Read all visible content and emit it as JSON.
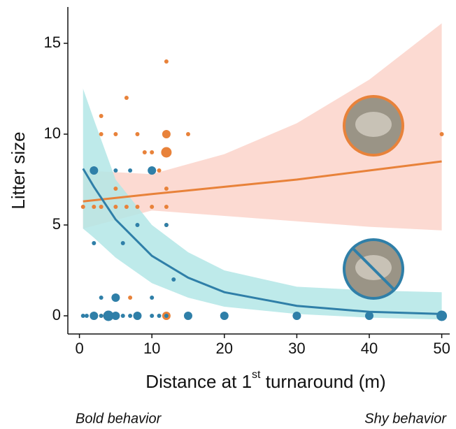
{
  "chart_data": {
    "type": "scatter",
    "ylabel": "Litter size",
    "xlabel": {
      "main": "Distance at 1",
      "sup": "st",
      "rest": " turnaround (m)"
    },
    "annotations": [
      "Bold behavior",
      "Shy behavior"
    ],
    "xlim": [
      -1.6,
      51.1
    ],
    "ylim": [
      -1,
      17
    ],
    "xticks": [
      0,
      10,
      20,
      30,
      40,
      50
    ],
    "yticks": [
      0,
      5,
      10,
      15
    ],
    "series": [
      {
        "color": "#e8823a",
        "band_color": "#fbd3ca",
        "x": [
          0.5,
          2,
          3,
          3,
          3,
          3,
          5,
          5,
          5,
          6.5,
          6.5,
          7,
          8,
          8,
          9,
          10,
          10,
          11,
          12,
          12,
          12,
          12,
          12,
          12,
          12,
          15,
          50
        ],
        "values": [
          6,
          6,
          11,
          10,
          6,
          0,
          10,
          7,
          6,
          12,
          6,
          1,
          10,
          6,
          9,
          9,
          6,
          8,
          14,
          10,
          9,
          7,
          5,
          0,
          6,
          10,
          10
        ],
        "sizes": [
          1,
          1,
          1,
          1,
          1,
          1,
          1,
          1,
          1,
          1,
          1,
          1,
          1,
          1,
          1,
          1,
          1,
          1,
          1,
          3,
          4,
          1,
          1,
          3,
          1,
          1,
          1
        ],
        "fit": {
          "x": [
            0.5,
            10,
            20,
            30,
            40,
            50
          ],
          "values": [
            6.3,
            6.7,
            7.1,
            7.5,
            8.0,
            8.5
          ],
          "lower": [
            4.8,
            5.8,
            5.5,
            5.2,
            4.9,
            4.7
          ],
          "upper": [
            8.0,
            7.8,
            8.9,
            10.6,
            13.0,
            16.1
          ]
        }
      },
      {
        "color": "#2f7fa8",
        "band_color": "#b3e6e6",
        "x": [
          2,
          2,
          3,
          5,
          5,
          6,
          7,
          8,
          10,
          10,
          12,
          13,
          0.5,
          1,
          2,
          3,
          4,
          5,
          6,
          7,
          8,
          10,
          11,
          12,
          15,
          20,
          30,
          40,
          50
        ],
        "values": [
          8,
          4,
          1,
          1,
          8,
          4,
          8,
          5,
          1,
          8,
          5,
          2,
          0,
          0,
          0,
          0,
          0,
          0,
          0,
          0,
          0,
          0,
          0,
          0,
          0,
          0,
          0,
          0,
          0
        ],
        "sizes": [
          3,
          1,
          1,
          3,
          1,
          1,
          1,
          1,
          1,
          3,
          1,
          1,
          1,
          1,
          3,
          1,
          4,
          3,
          1,
          1,
          3,
          1,
          1,
          1,
          3,
          3,
          3,
          3,
          4
        ],
        "fit": {
          "x": [
            0.5,
            2,
            5,
            10,
            15,
            20,
            30,
            40,
            50
          ],
          "values": [
            8.1,
            7.1,
            5.3,
            3.3,
            2.1,
            1.3,
            0.55,
            0.22,
            0.1
          ],
          "lower": [
            4.8,
            4.3,
            3.2,
            1.8,
            1.0,
            0.5,
            0.1,
            -0.1,
            -0.2
          ],
          "upper": [
            12.5,
            10.8,
            7.5,
            5.0,
            3.5,
            2.5,
            1.6,
            1.4,
            1.3
          ]
        }
      }
    ]
  }
}
